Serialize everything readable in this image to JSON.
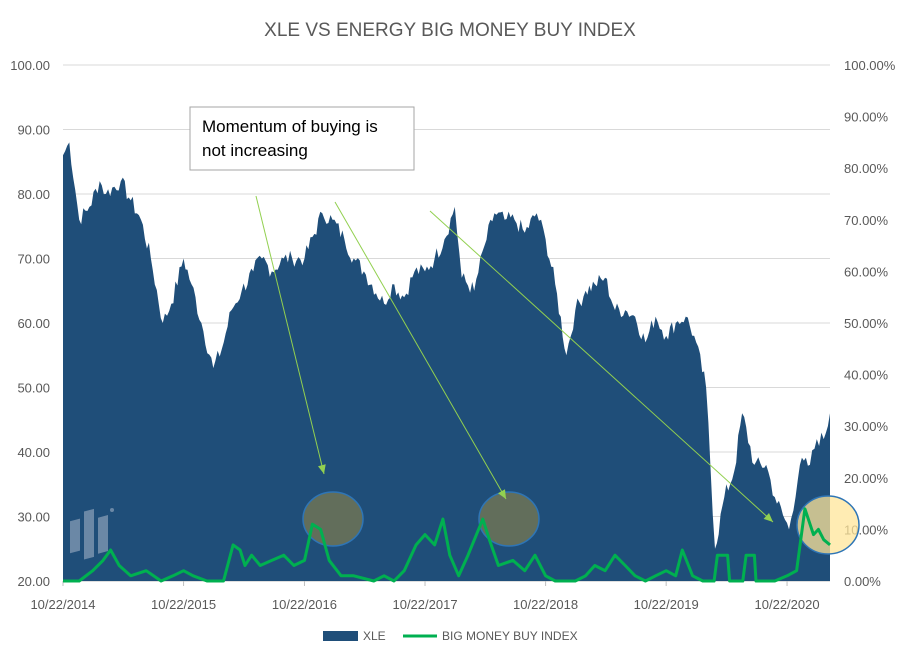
{
  "chart_data": {
    "type": "area",
    "title": "XLE VS ENERGY BIG MONEY BUY INDEX",
    "x_tick_labels": [
      "10/22/2014",
      "10/22/2015",
      "10/22/2016",
      "10/22/2017",
      "10/22/2018",
      "10/22/2019",
      "10/22/2020"
    ],
    "y_left_ticks": [
      "20.00",
      "30.00",
      "40.00",
      "50.00",
      "60.00",
      "70.00",
      "80.00",
      "90.00",
      "100.00"
    ],
    "y_right_ticks": [
      "0.00%",
      "10.00%",
      "20.00%",
      "30.00%",
      "40.00%",
      "50.00%",
      "60.00%",
      "70.00%",
      "80.00%",
      "90.00%",
      "100.00%"
    ],
    "ylim_left": [
      20,
      100
    ],
    "ylim_right": [
      0,
      1
    ],
    "xlim": [
      "2014-10-22",
      "2021-03-01"
    ],
    "grid": true,
    "legend_position": "bottom",
    "series": [
      {
        "name": "XLE",
        "axis": "left",
        "kind": "area",
        "color": "#1F4E79",
        "points": [
          [
            "2014-10-22",
            86
          ],
          [
            "2014-11-10",
            88
          ],
          [
            "2014-12-10",
            76
          ],
          [
            "2015-01-10",
            78
          ],
          [
            "2015-02-10",
            82
          ],
          [
            "2015-03-01",
            80
          ],
          [
            "2015-04-15",
            82
          ],
          [
            "2015-05-15",
            79
          ],
          [
            "2015-06-15",
            76
          ],
          [
            "2015-07-15",
            70
          ],
          [
            "2015-08-20",
            60
          ],
          [
            "2015-09-15",
            63
          ],
          [
            "2015-10-22",
            70
          ],
          [
            "2015-11-15",
            66
          ],
          [
            "2015-12-15",
            60
          ],
          [
            "2016-01-20",
            53
          ],
          [
            "2016-02-15",
            56
          ],
          [
            "2016-03-15",
            62
          ],
          [
            "2016-04-15",
            65
          ],
          [
            "2016-05-20",
            68
          ],
          [
            "2016-06-15",
            70
          ],
          [
            "2016-07-15",
            68
          ],
          [
            "2016-08-20",
            70
          ],
          [
            "2016-09-15",
            70
          ],
          [
            "2016-10-22",
            70
          ],
          [
            "2016-12-15",
            77
          ],
          [
            "2017-01-15",
            76
          ],
          [
            "2017-02-20",
            73
          ],
          [
            "2017-03-20",
            70
          ],
          [
            "2017-04-20",
            68
          ],
          [
            "2017-06-20",
            63
          ],
          [
            "2017-07-15",
            66
          ],
          [
            "2017-08-20",
            64
          ],
          [
            "2017-09-20",
            68
          ],
          [
            "2017-10-22",
            68
          ],
          [
            "2017-11-20",
            70
          ],
          [
            "2017-12-20",
            73
          ],
          [
            "2018-01-20",
            78
          ],
          [
            "2018-02-10",
            67
          ],
          [
            "2018-03-20",
            65
          ],
          [
            "2018-04-20",
            72
          ],
          [
            "2018-05-20",
            77
          ],
          [
            "2018-06-20",
            76
          ],
          [
            "2018-07-20",
            76
          ],
          [
            "2018-08-20",
            74
          ],
          [
            "2018-09-25",
            77
          ],
          [
            "2018-10-22",
            73
          ],
          [
            "2018-11-20",
            66
          ],
          [
            "2018-12-24",
            55
          ],
          [
            "2019-01-20",
            62
          ],
          [
            "2019-02-20",
            65
          ],
          [
            "2019-03-20",
            66
          ],
          [
            "2019-04-20",
            67
          ],
          [
            "2019-05-20",
            62
          ],
          [
            "2019-06-20",
            62
          ],
          [
            "2019-07-20",
            61
          ],
          [
            "2019-08-20",
            57
          ],
          [
            "2019-09-20",
            61
          ],
          [
            "2019-10-22",
            58
          ],
          [
            "2019-11-20",
            60
          ],
          [
            "2019-12-20",
            61
          ],
          [
            "2020-01-15",
            58
          ],
          [
            "2020-02-20",
            50
          ],
          [
            "2020-03-18",
            25
          ],
          [
            "2020-04-15",
            33
          ],
          [
            "2020-05-15",
            37
          ],
          [
            "2020-06-08",
            46
          ],
          [
            "2020-07-15",
            38
          ],
          [
            "2020-08-20",
            38
          ],
          [
            "2020-09-15",
            33
          ],
          [
            "2020-10-28",
            28
          ],
          [
            "2020-11-30",
            38
          ],
          [
            "2020-12-30",
            38
          ],
          [
            "2021-01-20",
            42
          ],
          [
            "2021-02-10",
            42
          ],
          [
            "2021-03-01",
            46
          ]
        ]
      },
      {
        "name": "BIG MONEY BUY INDEX",
        "axis": "right",
        "kind": "line",
        "color": "#00B050",
        "points": [
          [
            "2014-10-22",
            0.0
          ],
          [
            "2014-12-10",
            0.0
          ],
          [
            "2015-01-20",
            0.02
          ],
          [
            "2015-02-20",
            0.04
          ],
          [
            "2015-03-15",
            0.06
          ],
          [
            "2015-04-10",
            0.03
          ],
          [
            "2015-05-15",
            0.01
          ],
          [
            "2015-07-01",
            0.02
          ],
          [
            "2015-08-15",
            0.0
          ],
          [
            "2015-09-20",
            0.01
          ],
          [
            "2015-10-22",
            0.02
          ],
          [
            "2015-11-20",
            0.01
          ],
          [
            "2016-01-01",
            0.0
          ],
          [
            "2016-02-20",
            0.0
          ],
          [
            "2016-03-20",
            0.07
          ],
          [
            "2016-04-10",
            0.06
          ],
          [
            "2016-04-25",
            0.03
          ],
          [
            "2016-05-15",
            0.05
          ],
          [
            "2016-06-10",
            0.03
          ],
          [
            "2016-07-15",
            0.04
          ],
          [
            "2016-08-20",
            0.05
          ],
          [
            "2016-09-20",
            0.03
          ],
          [
            "2016-10-22",
            0.04
          ],
          [
            "2016-11-15",
            0.11
          ],
          [
            "2016-12-10",
            0.1
          ],
          [
            "2017-01-05",
            0.04
          ],
          [
            "2017-02-10",
            0.01
          ],
          [
            "2017-03-20",
            0.01
          ],
          [
            "2017-05-20",
            0.0
          ],
          [
            "2017-06-20",
            0.01
          ],
          [
            "2017-07-20",
            0.0
          ],
          [
            "2017-08-20",
            0.02
          ],
          [
            "2017-09-25",
            0.07
          ],
          [
            "2017-10-22",
            0.09
          ],
          [
            "2017-11-20",
            0.07
          ],
          [
            "2017-12-15",
            0.12
          ],
          [
            "2018-01-05",
            0.05
          ],
          [
            "2018-02-01",
            0.01
          ],
          [
            "2018-03-01",
            0.05
          ],
          [
            "2018-04-15",
            0.12
          ],
          [
            "2018-05-05",
            0.08
          ],
          [
            "2018-06-01",
            0.03
          ],
          [
            "2018-07-15",
            0.04
          ],
          [
            "2018-08-20",
            0.02
          ],
          [
            "2018-09-20",
            0.05
          ],
          [
            "2018-10-22",
            0.01
          ],
          [
            "2018-11-20",
            0.0
          ],
          [
            "2019-01-20",
            0.0
          ],
          [
            "2019-02-20",
            0.01
          ],
          [
            "2019-03-20",
            0.03
          ],
          [
            "2019-04-20",
            0.02
          ],
          [
            "2019-05-20",
            0.05
          ],
          [
            "2019-06-20",
            0.03
          ],
          [
            "2019-07-20",
            0.01
          ],
          [
            "2019-08-20",
            0.0
          ],
          [
            "2019-09-20",
            0.01
          ],
          [
            "2019-10-22",
            0.02
          ],
          [
            "2019-11-20",
            0.01
          ],
          [
            "2019-12-10",
            0.06
          ],
          [
            "2020-01-10",
            0.01
          ],
          [
            "2020-02-10",
            0.0
          ],
          [
            "2020-03-15",
            0.0
          ],
          [
            "2020-03-25",
            0.05
          ],
          [
            "2020-04-25",
            0.05
          ],
          [
            "2020-05-01",
            0.0
          ],
          [
            "2020-06-10",
            0.0
          ],
          [
            "2020-06-20",
            0.05
          ],
          [
            "2020-07-15",
            0.05
          ],
          [
            "2020-07-20",
            0.0
          ],
          [
            "2020-09-15",
            0.0
          ],
          [
            "2020-10-22",
            0.01
          ],
          [
            "2020-11-20",
            0.02
          ],
          [
            "2020-12-15",
            0.14
          ],
          [
            "2021-01-10",
            0.09
          ],
          [
            "2021-01-25",
            0.1
          ],
          [
            "2021-02-10",
            0.08
          ],
          [
            "2021-03-01",
            0.07
          ]
        ]
      }
    ],
    "annotation": {
      "text": "Momentum of buying is not increasing"
    }
  }
}
